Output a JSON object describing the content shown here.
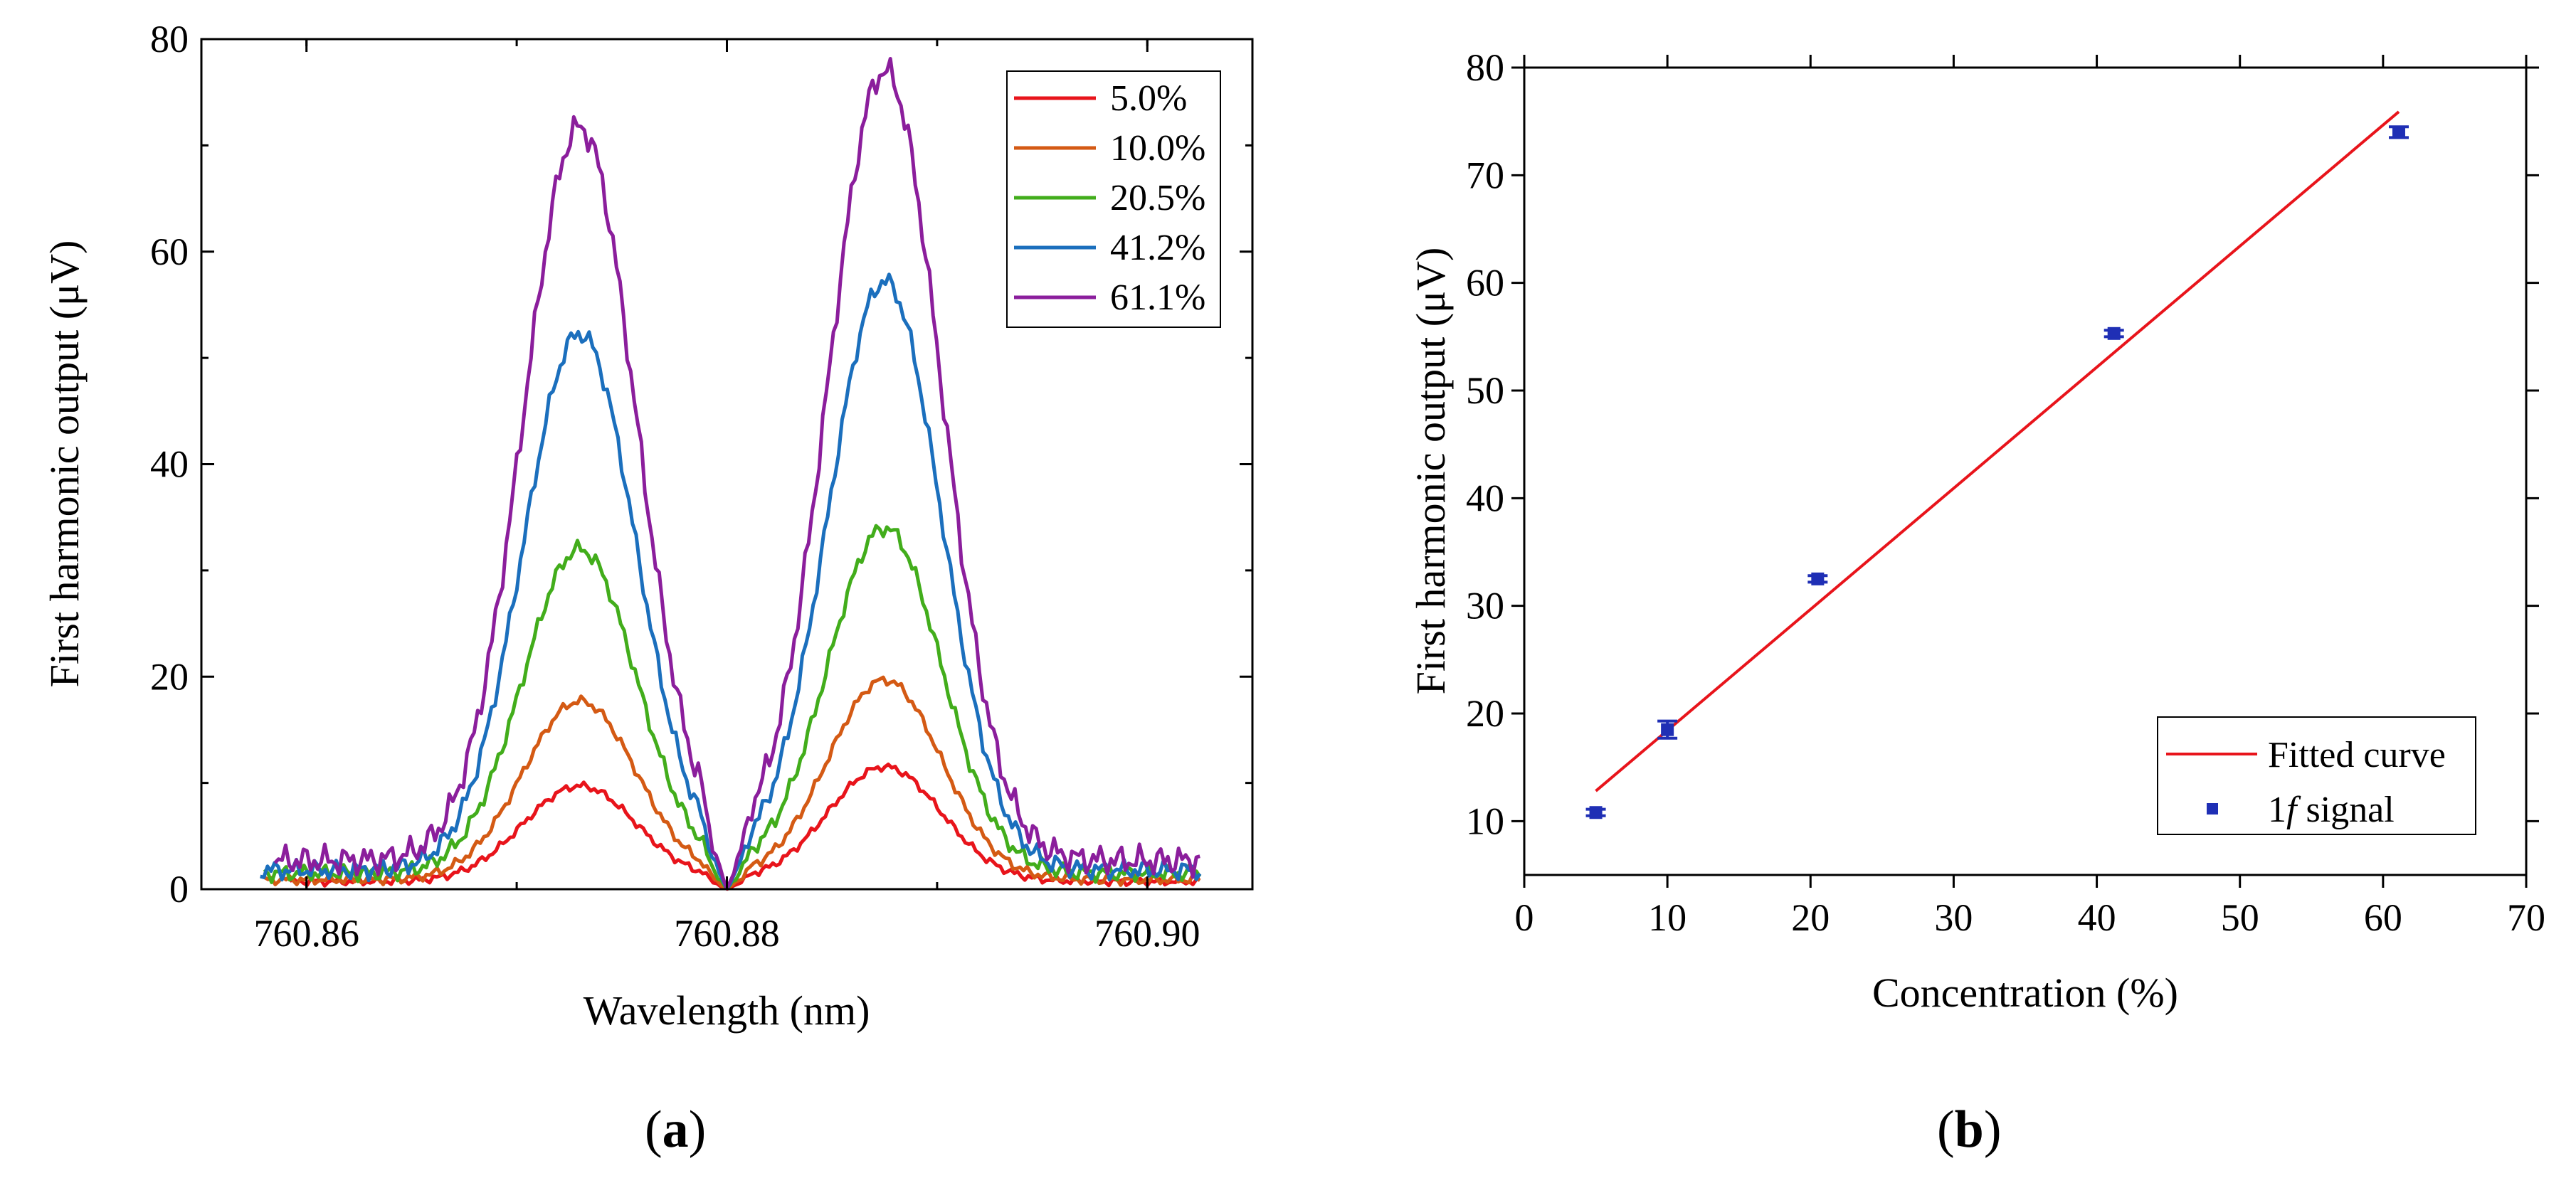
{
  "chart_data": [
    {
      "panel_label": "(a)",
      "panel_letter": "a",
      "type": "line",
      "title": "",
      "xlabel": "Wavelength (nm)",
      "ylabel": "First harmonic output (μV)",
      "xlim": [
        760.855,
        760.905
      ],
      "ylim": [
        0,
        80
      ],
      "xticks": [
        760.86,
        760.88,
        760.9
      ],
      "xtick_labels": [
        "760.86",
        "760.88",
        "760.90"
      ],
      "yticks": [
        0,
        20,
        40,
        60,
        80
      ],
      "ytick_labels": [
        "0",
        "20",
        "40",
        "60",
        "80"
      ],
      "legend_position": "top-right",
      "peak_model": {
        "dip_center": 760.88,
        "left_peak_center": 760.873,
        "right_peak_center": 760.8875,
        "width": 0.0038
      },
      "series": [
        {
          "name": "5.0%",
          "color": "#e8141b",
          "left_peak": 9.0,
          "right_peak": 10.8,
          "baseline": 1.2,
          "x_start": 760.8592
        },
        {
          "name": "10.0%",
          "color": "#d45a14",
          "left_peak": 16.8,
          "right_peak": 18.8,
          "baseline": 1.5,
          "x_start": 760.858
        },
        {
          "name": "20.5%",
          "color": "#42ad1b",
          "left_peak": 30.5,
          "right_peak": 32.5,
          "baseline": 2.5,
          "x_start": 760.858
        },
        {
          "name": "41.2%",
          "color": "#1b6fbd",
          "left_peak": 50.5,
          "right_peak": 55.4,
          "baseline": 3.0,
          "x_start": 760.8578
        },
        {
          "name": "61.1%",
          "color": "#8b1e9c",
          "left_peak": 69.0,
          "right_peak": 74.3,
          "baseline": 4.5,
          "x_start": 760.8585
        }
      ]
    },
    {
      "panel_label": "(b)",
      "panel_letter": "b",
      "type": "scatter",
      "title": "",
      "xlabel": "Concentration (%)",
      "ylabel": "First harmonic output (μV)",
      "xlim": [
        0,
        70
      ],
      "ylim": [
        5,
        80
      ],
      "xticks": [
        0,
        10,
        20,
        30,
        40,
        50,
        60,
        70
      ],
      "xtick_labels": [
        "0",
        "10",
        "20",
        "30",
        "40",
        "50",
        "60",
        "70"
      ],
      "yticks": [
        10,
        20,
        30,
        40,
        50,
        60,
        70,
        80
      ],
      "ytick_labels": [
        "10",
        "20",
        "30",
        "40",
        "50",
        "60",
        "70",
        "80"
      ],
      "legend_position": "bottom-right",
      "fit": {
        "name": "Fitted curve",
        "color": "#e8141b",
        "x": [
          5.0,
          61.1
        ],
        "y": [
          12.8,
          75.9
        ]
      },
      "points": {
        "name": "1f signal",
        "legend_italic_part": "f",
        "legend_prefix": "1",
        "legend_suffix": " signal",
        "color": "#1f2fb5",
        "x": [
          5.0,
          10.0,
          20.5,
          41.2,
          61.1
        ],
        "y": [
          10.8,
          18.5,
          32.5,
          55.3,
          74.0
        ],
        "yerr": [
          0.3,
          0.8,
          0.3,
          0.3,
          0.5
        ]
      }
    }
  ]
}
